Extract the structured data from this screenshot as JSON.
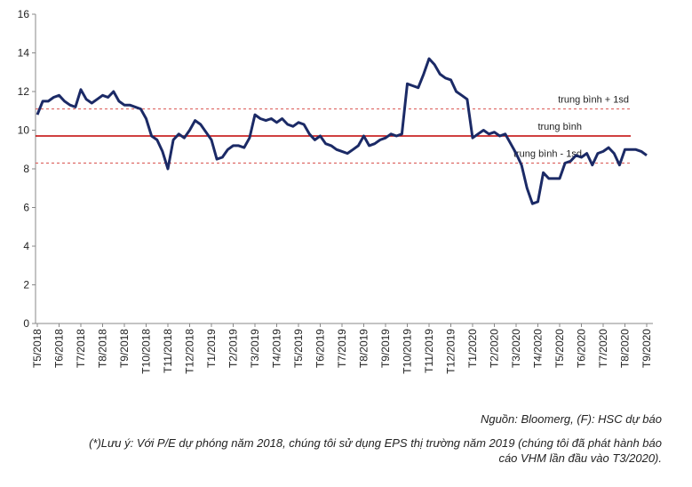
{
  "chart_data": {
    "type": "line",
    "categories": [
      "T5/2018",
      null,
      null,
      null,
      "T6/2018",
      null,
      null,
      null,
      "T7/2018",
      null,
      null,
      null,
      "T8/2018",
      null,
      null,
      null,
      "T9/2018",
      null,
      null,
      null,
      "T10/2018",
      null,
      null,
      null,
      "T11/2018",
      null,
      null,
      null,
      "T12/2018",
      null,
      null,
      null,
      "T1/2019",
      null,
      null,
      null,
      "T2/2019",
      null,
      null,
      null,
      "T3/2019",
      null,
      null,
      null,
      "T4/2019",
      null,
      null,
      null,
      "T5/2019",
      null,
      null,
      null,
      "T6/2019",
      null,
      null,
      null,
      "T7/2019",
      null,
      null,
      null,
      "T8/2019",
      null,
      null,
      null,
      "T9/2019",
      null,
      null,
      null,
      "T10/2019",
      null,
      null,
      null,
      "T11/2019",
      null,
      null,
      null,
      "T12/2019",
      null,
      null,
      null,
      "T1/2020",
      null,
      null,
      null,
      "T2/2020",
      null,
      null,
      null,
      "T3/2020",
      null,
      null,
      null,
      "T4/2020",
      null,
      null,
      null,
      "T5/2020",
      null,
      null,
      null,
      "T6/2020",
      null,
      null,
      null,
      "T7/2020",
      null,
      null,
      null,
      "T8/2020",
      null,
      null,
      null,
      "T9/2020"
    ],
    "values": [
      10.8,
      11.5,
      11.5,
      11.7,
      11.8,
      11.5,
      11.3,
      11.2,
      12.1,
      11.6,
      11.4,
      11.6,
      11.8,
      11.7,
      12.0,
      11.5,
      11.3,
      11.3,
      11.2,
      11.1,
      10.6,
      9.7,
      9.5,
      8.9,
      8.0,
      9.5,
      9.8,
      9.6,
      10.0,
      10.5,
      10.3,
      9.9,
      9.5,
      8.5,
      8.6,
      9.0,
      9.2,
      9.2,
      9.1,
      9.6,
      10.8,
      10.6,
      10.5,
      10.6,
      10.4,
      10.6,
      10.3,
      10.2,
      10.4,
      10.3,
      9.8,
      9.5,
      9.7,
      9.3,
      9.2,
      9.0,
      8.9,
      8.8,
      9.0,
      9.2,
      9.7,
      9.2,
      9.3,
      9.5,
      9.6,
      9.8,
      9.7,
      9.8,
      12.4,
      12.3,
      12.2,
      12.9,
      13.7,
      13.4,
      12.9,
      12.7,
      12.6,
      12.0,
      11.8,
      11.6,
      9.6,
      9.8,
      10.0,
      9.8,
      9.9,
      9.7,
      9.8,
      9.3,
      8.8,
      8.2,
      7.0,
      6.2,
      6.3,
      7.8,
      7.5,
      7.5,
      7.5,
      8.3,
      8.4,
      8.7,
      8.6,
      8.8,
      8.2,
      8.8,
      8.9,
      9.1,
      8.8,
      8.2,
      9.0,
      9.0,
      9.0,
      8.9,
      8.7
    ],
    "color": "#1b2a66",
    "ylim": [
      0,
      16
    ],
    "yticks": [
      0,
      2,
      4,
      6,
      8,
      10,
      12,
      14,
      16
    ],
    "reference_lines": [
      {
        "label": "trung bình + 1sd",
        "value": 11.1,
        "style": "dashed",
        "color": "#d9534f"
      },
      {
        "label": "trung bình",
        "value": 9.7,
        "style": "solid",
        "color": "#c00000"
      },
      {
        "label": "trung bình - 1sd",
        "value": 8.3,
        "style": "dashed",
        "color": "#d9534f"
      }
    ],
    "source": "Nguồn: Bloomerg, (F): HSC dự báo",
    "notes": [
      "(*)Lưu ý: Với P/E dự phóng năm 2018, chúng tôi sử dụng EPS thị trường năm 2019 (chúng tôi đã phát hành báo",
      "cáo VHM lần đầu vào T3/2020)."
    ]
  }
}
